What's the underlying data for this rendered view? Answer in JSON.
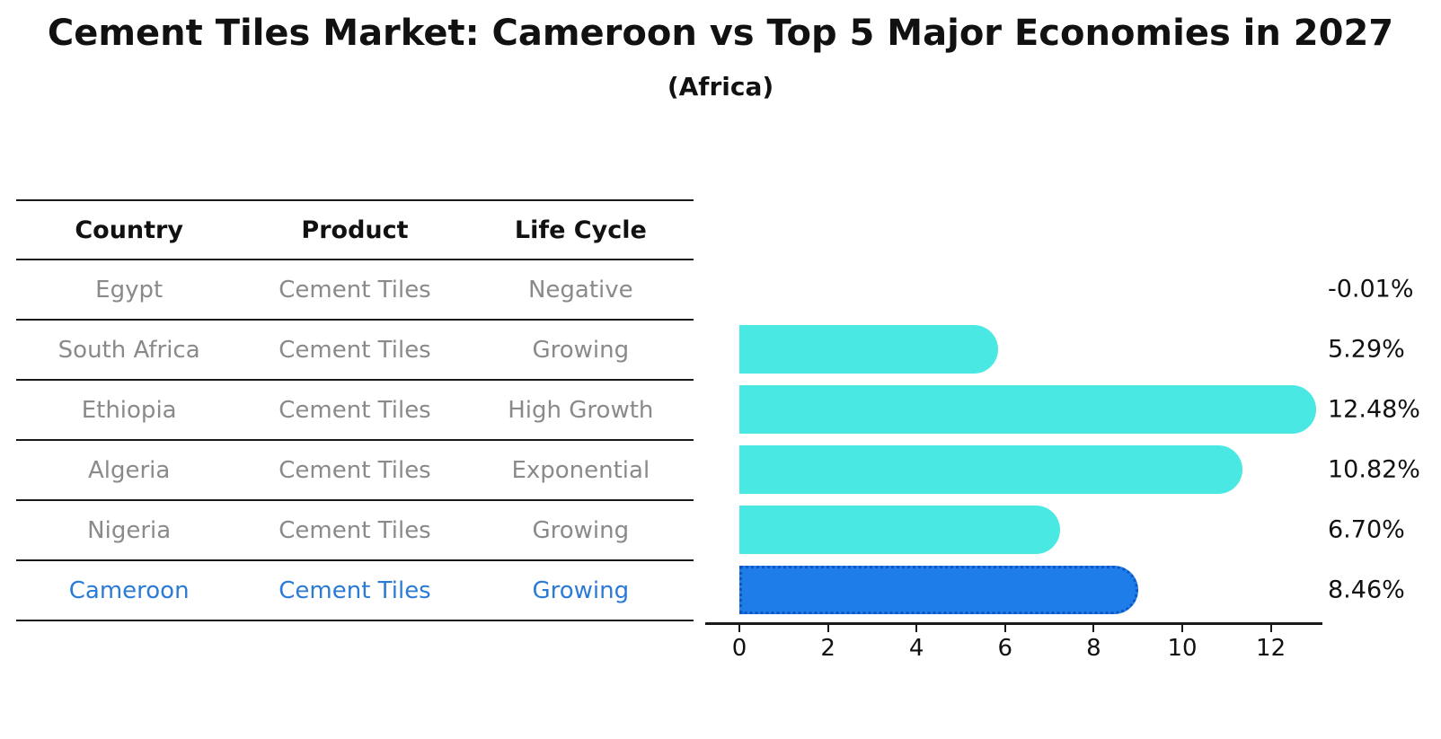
{
  "title": "Cement Tiles Market: Cameroon vs Top 5 Major Economies in 2027",
  "subtitle": "(Africa)",
  "table": {
    "headers": [
      "Country",
      "Product",
      "Life Cycle"
    ],
    "rows": [
      {
        "country": "Egypt",
        "product": "Cement Tiles",
        "life_cycle": "Negative",
        "highlighted": false
      },
      {
        "country": "South Africa",
        "product": "Cement Tiles",
        "life_cycle": "Growing",
        "highlighted": false
      },
      {
        "country": "Ethiopia",
        "product": "Cement Tiles",
        "life_cycle": "High Growth",
        "highlighted": false
      },
      {
        "country": "Algeria",
        "product": "Cement Tiles",
        "life_cycle": "Exponential",
        "highlighted": false
      },
      {
        "country": "Nigeria",
        "product": "Cement Tiles",
        "life_cycle": "Growing",
        "highlighted": false
      },
      {
        "country": "Cameroon",
        "product": "Cement Tiles",
        "life_cycle": "Growing",
        "highlighted": true
      }
    ]
  },
  "chart_data": {
    "type": "bar",
    "orientation": "horizontal",
    "categories": [
      "Egypt",
      "South Africa",
      "Ethiopia",
      "Algeria",
      "Nigeria",
      "Cameroon"
    ],
    "values": [
      -0.01,
      5.29,
      12.48,
      10.82,
      6.7,
      8.46
    ],
    "value_labels": [
      "-0.01%",
      "5.29%",
      "12.48%",
      "10.82%",
      "6.70%",
      "8.46%"
    ],
    "xticks": [
      0,
      2,
      4,
      6,
      8,
      10,
      12
    ],
    "xlim": [
      0,
      13.2
    ],
    "grid": false,
    "legend": "none",
    "highlight_index": 5,
    "bar_color": "#4AE8E2",
    "highlight_color": "#1E7DE8",
    "highlight_border_color": "#0E55C8"
  },
  "colors": {
    "text": "#111111",
    "muted_text": "#8a8a8a",
    "highlight_text": "#2B7BD6",
    "line": "#1a1a1a",
    "background": "#ffffff"
  }
}
